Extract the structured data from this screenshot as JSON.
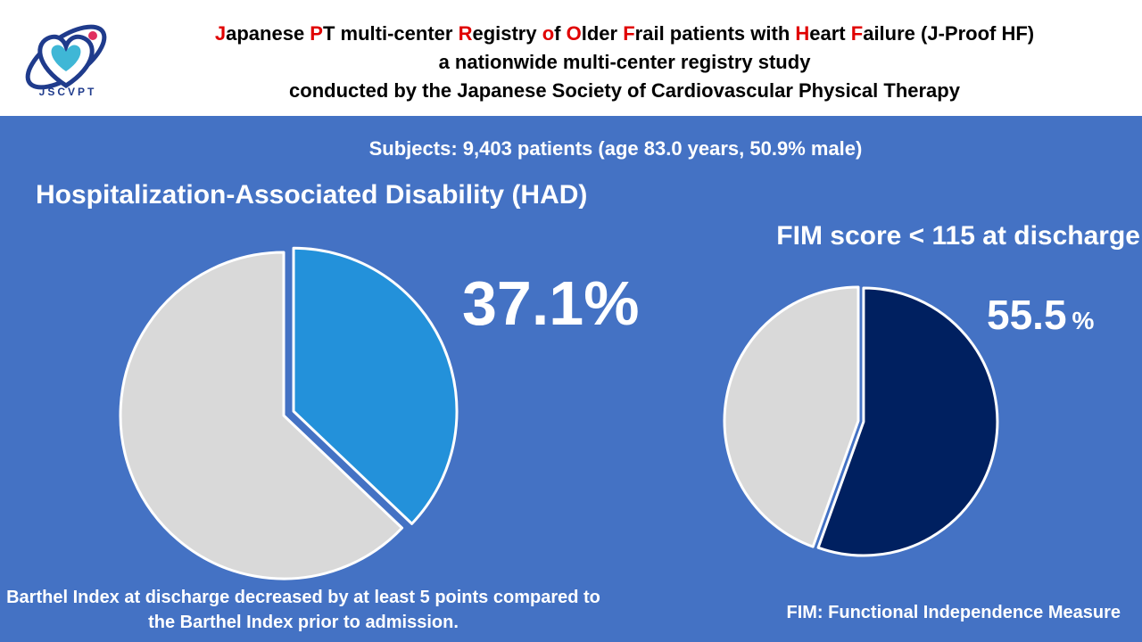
{
  "header": {
    "title_line1": [
      {
        "t": "J",
        "red": true
      },
      {
        "t": "apanese ",
        "red": false
      },
      {
        "t": "P",
        "red": true
      },
      {
        "t": "T multi-center ",
        "red": false
      },
      {
        "t": "R",
        "red": true
      },
      {
        "t": "egistry ",
        "red": false
      },
      {
        "t": "o",
        "red": true
      },
      {
        "t": "f ",
        "red": false
      },
      {
        "t": "O",
        "red": true
      },
      {
        "t": "lder ",
        "red": false
      },
      {
        "t": "F",
        "red": true
      },
      {
        "t": "rail patients with ",
        "red": false
      },
      {
        "t": "H",
        "red": true
      },
      {
        "t": "eart ",
        "red": false
      },
      {
        "t": "F",
        "red": true
      },
      {
        "t": "ailure (J-Proof HF)",
        "red": false
      }
    ],
    "title_line2": "a nationwide multi-center registry study",
    "title_line3": "conducted by the Japanese Society of Cardiovascular Physical Therapy",
    "logo_text": "JSCVPT"
  },
  "subjects": "Subjects: 9,403 patients (age 83.0 years, 50.9% male)",
  "colors": {
    "background": "#4472C4",
    "had_slice": "#2391DA",
    "fim_slice": "#002060",
    "rest_slice": "#D9D9D9"
  },
  "chart_data": [
    {
      "type": "pie",
      "title": "Hospitalization-Associated Disability (HAD)",
      "slices": [
        {
          "label": "HAD",
          "value": 37.1
        },
        {
          "label": "",
          "value": 62.9
        }
      ],
      "value_label": "37.1%",
      "note": "Barthel Index at discharge decreased by at least 5 points compared to the Barthel Index prior to admission."
    },
    {
      "type": "pie",
      "title": "FIM score < 115 at discharge",
      "slices": [
        {
          "label": "FIM score < 115",
          "value": 55.5
        },
        {
          "label": "",
          "value": 44.5
        }
      ],
      "value_number": "55.5",
      "value_unit": "%",
      "note": "FIM: Functional Independence Measure"
    }
  ]
}
